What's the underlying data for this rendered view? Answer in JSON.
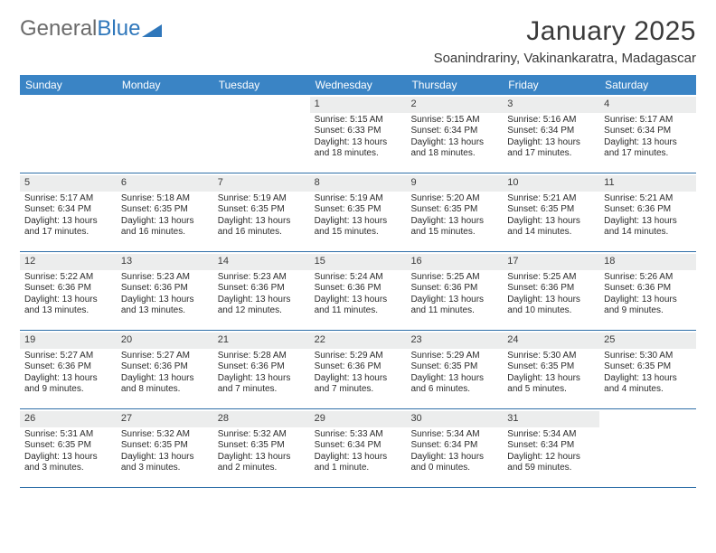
{
  "brand": {
    "part1": "General",
    "part2": "Blue"
  },
  "title": "January 2025",
  "location": "Soanindrariny, Vakinankaratra, Madagascar",
  "colors": {
    "header_bg": "#3a84c5",
    "border": "#2f6fa8",
    "daynum_bg": "#eceded",
    "text": "#2b2b2b",
    "brand_gray": "#6b6b6b",
    "brand_blue": "#2f77bb"
  },
  "dow": [
    "Sunday",
    "Monday",
    "Tuesday",
    "Wednesday",
    "Thursday",
    "Friday",
    "Saturday"
  ],
  "weeks": [
    [
      {
        "empty": true
      },
      {
        "empty": true
      },
      {
        "empty": true
      },
      {
        "n": "1",
        "sr": "5:15 AM",
        "ss": "6:33 PM",
        "d1": "Daylight: 13 hours",
        "d2": "and 18 minutes."
      },
      {
        "n": "2",
        "sr": "5:15 AM",
        "ss": "6:34 PM",
        "d1": "Daylight: 13 hours",
        "d2": "and 18 minutes."
      },
      {
        "n": "3",
        "sr": "5:16 AM",
        "ss": "6:34 PM",
        "d1": "Daylight: 13 hours",
        "d2": "and 17 minutes."
      },
      {
        "n": "4",
        "sr": "5:17 AM",
        "ss": "6:34 PM",
        "d1": "Daylight: 13 hours",
        "d2": "and 17 minutes."
      }
    ],
    [
      {
        "n": "5",
        "sr": "5:17 AM",
        "ss": "6:34 PM",
        "d1": "Daylight: 13 hours",
        "d2": "and 17 minutes."
      },
      {
        "n": "6",
        "sr": "5:18 AM",
        "ss": "6:35 PM",
        "d1": "Daylight: 13 hours",
        "d2": "and 16 minutes."
      },
      {
        "n": "7",
        "sr": "5:19 AM",
        "ss": "6:35 PM",
        "d1": "Daylight: 13 hours",
        "d2": "and 16 minutes."
      },
      {
        "n": "8",
        "sr": "5:19 AM",
        "ss": "6:35 PM",
        "d1": "Daylight: 13 hours",
        "d2": "and 15 minutes."
      },
      {
        "n": "9",
        "sr": "5:20 AM",
        "ss": "6:35 PM",
        "d1": "Daylight: 13 hours",
        "d2": "and 15 minutes."
      },
      {
        "n": "10",
        "sr": "5:21 AM",
        "ss": "6:35 PM",
        "d1": "Daylight: 13 hours",
        "d2": "and 14 minutes."
      },
      {
        "n": "11",
        "sr": "5:21 AM",
        "ss": "6:36 PM",
        "d1": "Daylight: 13 hours",
        "d2": "and 14 minutes."
      }
    ],
    [
      {
        "n": "12",
        "sr": "5:22 AM",
        "ss": "6:36 PM",
        "d1": "Daylight: 13 hours",
        "d2": "and 13 minutes."
      },
      {
        "n": "13",
        "sr": "5:23 AM",
        "ss": "6:36 PM",
        "d1": "Daylight: 13 hours",
        "d2": "and 13 minutes."
      },
      {
        "n": "14",
        "sr": "5:23 AM",
        "ss": "6:36 PM",
        "d1": "Daylight: 13 hours",
        "d2": "and 12 minutes."
      },
      {
        "n": "15",
        "sr": "5:24 AM",
        "ss": "6:36 PM",
        "d1": "Daylight: 13 hours",
        "d2": "and 11 minutes."
      },
      {
        "n": "16",
        "sr": "5:25 AM",
        "ss": "6:36 PM",
        "d1": "Daylight: 13 hours",
        "d2": "and 11 minutes."
      },
      {
        "n": "17",
        "sr": "5:25 AM",
        "ss": "6:36 PM",
        "d1": "Daylight: 13 hours",
        "d2": "and 10 minutes."
      },
      {
        "n": "18",
        "sr": "5:26 AM",
        "ss": "6:36 PM",
        "d1": "Daylight: 13 hours",
        "d2": "and 9 minutes."
      }
    ],
    [
      {
        "n": "19",
        "sr": "5:27 AM",
        "ss": "6:36 PM",
        "d1": "Daylight: 13 hours",
        "d2": "and 9 minutes."
      },
      {
        "n": "20",
        "sr": "5:27 AM",
        "ss": "6:36 PM",
        "d1": "Daylight: 13 hours",
        "d2": "and 8 minutes."
      },
      {
        "n": "21",
        "sr": "5:28 AM",
        "ss": "6:36 PM",
        "d1": "Daylight: 13 hours",
        "d2": "and 7 minutes."
      },
      {
        "n": "22",
        "sr": "5:29 AM",
        "ss": "6:36 PM",
        "d1": "Daylight: 13 hours",
        "d2": "and 7 minutes."
      },
      {
        "n": "23",
        "sr": "5:29 AM",
        "ss": "6:35 PM",
        "d1": "Daylight: 13 hours",
        "d2": "and 6 minutes."
      },
      {
        "n": "24",
        "sr": "5:30 AM",
        "ss": "6:35 PM",
        "d1": "Daylight: 13 hours",
        "d2": "and 5 minutes."
      },
      {
        "n": "25",
        "sr": "5:30 AM",
        "ss": "6:35 PM",
        "d1": "Daylight: 13 hours",
        "d2": "and 4 minutes."
      }
    ],
    [
      {
        "n": "26",
        "sr": "5:31 AM",
        "ss": "6:35 PM",
        "d1": "Daylight: 13 hours",
        "d2": "and 3 minutes."
      },
      {
        "n": "27",
        "sr": "5:32 AM",
        "ss": "6:35 PM",
        "d1": "Daylight: 13 hours",
        "d2": "and 3 minutes."
      },
      {
        "n": "28",
        "sr": "5:32 AM",
        "ss": "6:35 PM",
        "d1": "Daylight: 13 hours",
        "d2": "and 2 minutes."
      },
      {
        "n": "29",
        "sr": "5:33 AM",
        "ss": "6:34 PM",
        "d1": "Daylight: 13 hours",
        "d2": "and 1 minute."
      },
      {
        "n": "30",
        "sr": "5:34 AM",
        "ss": "6:34 PM",
        "d1": "Daylight: 13 hours",
        "d2": "and 0 minutes."
      },
      {
        "n": "31",
        "sr": "5:34 AM",
        "ss": "6:34 PM",
        "d1": "Daylight: 12 hours",
        "d2": "and 59 minutes."
      },
      {
        "empty": true
      }
    ]
  ],
  "labels": {
    "sunrise": "Sunrise: ",
    "sunset": "Sunset: "
  }
}
